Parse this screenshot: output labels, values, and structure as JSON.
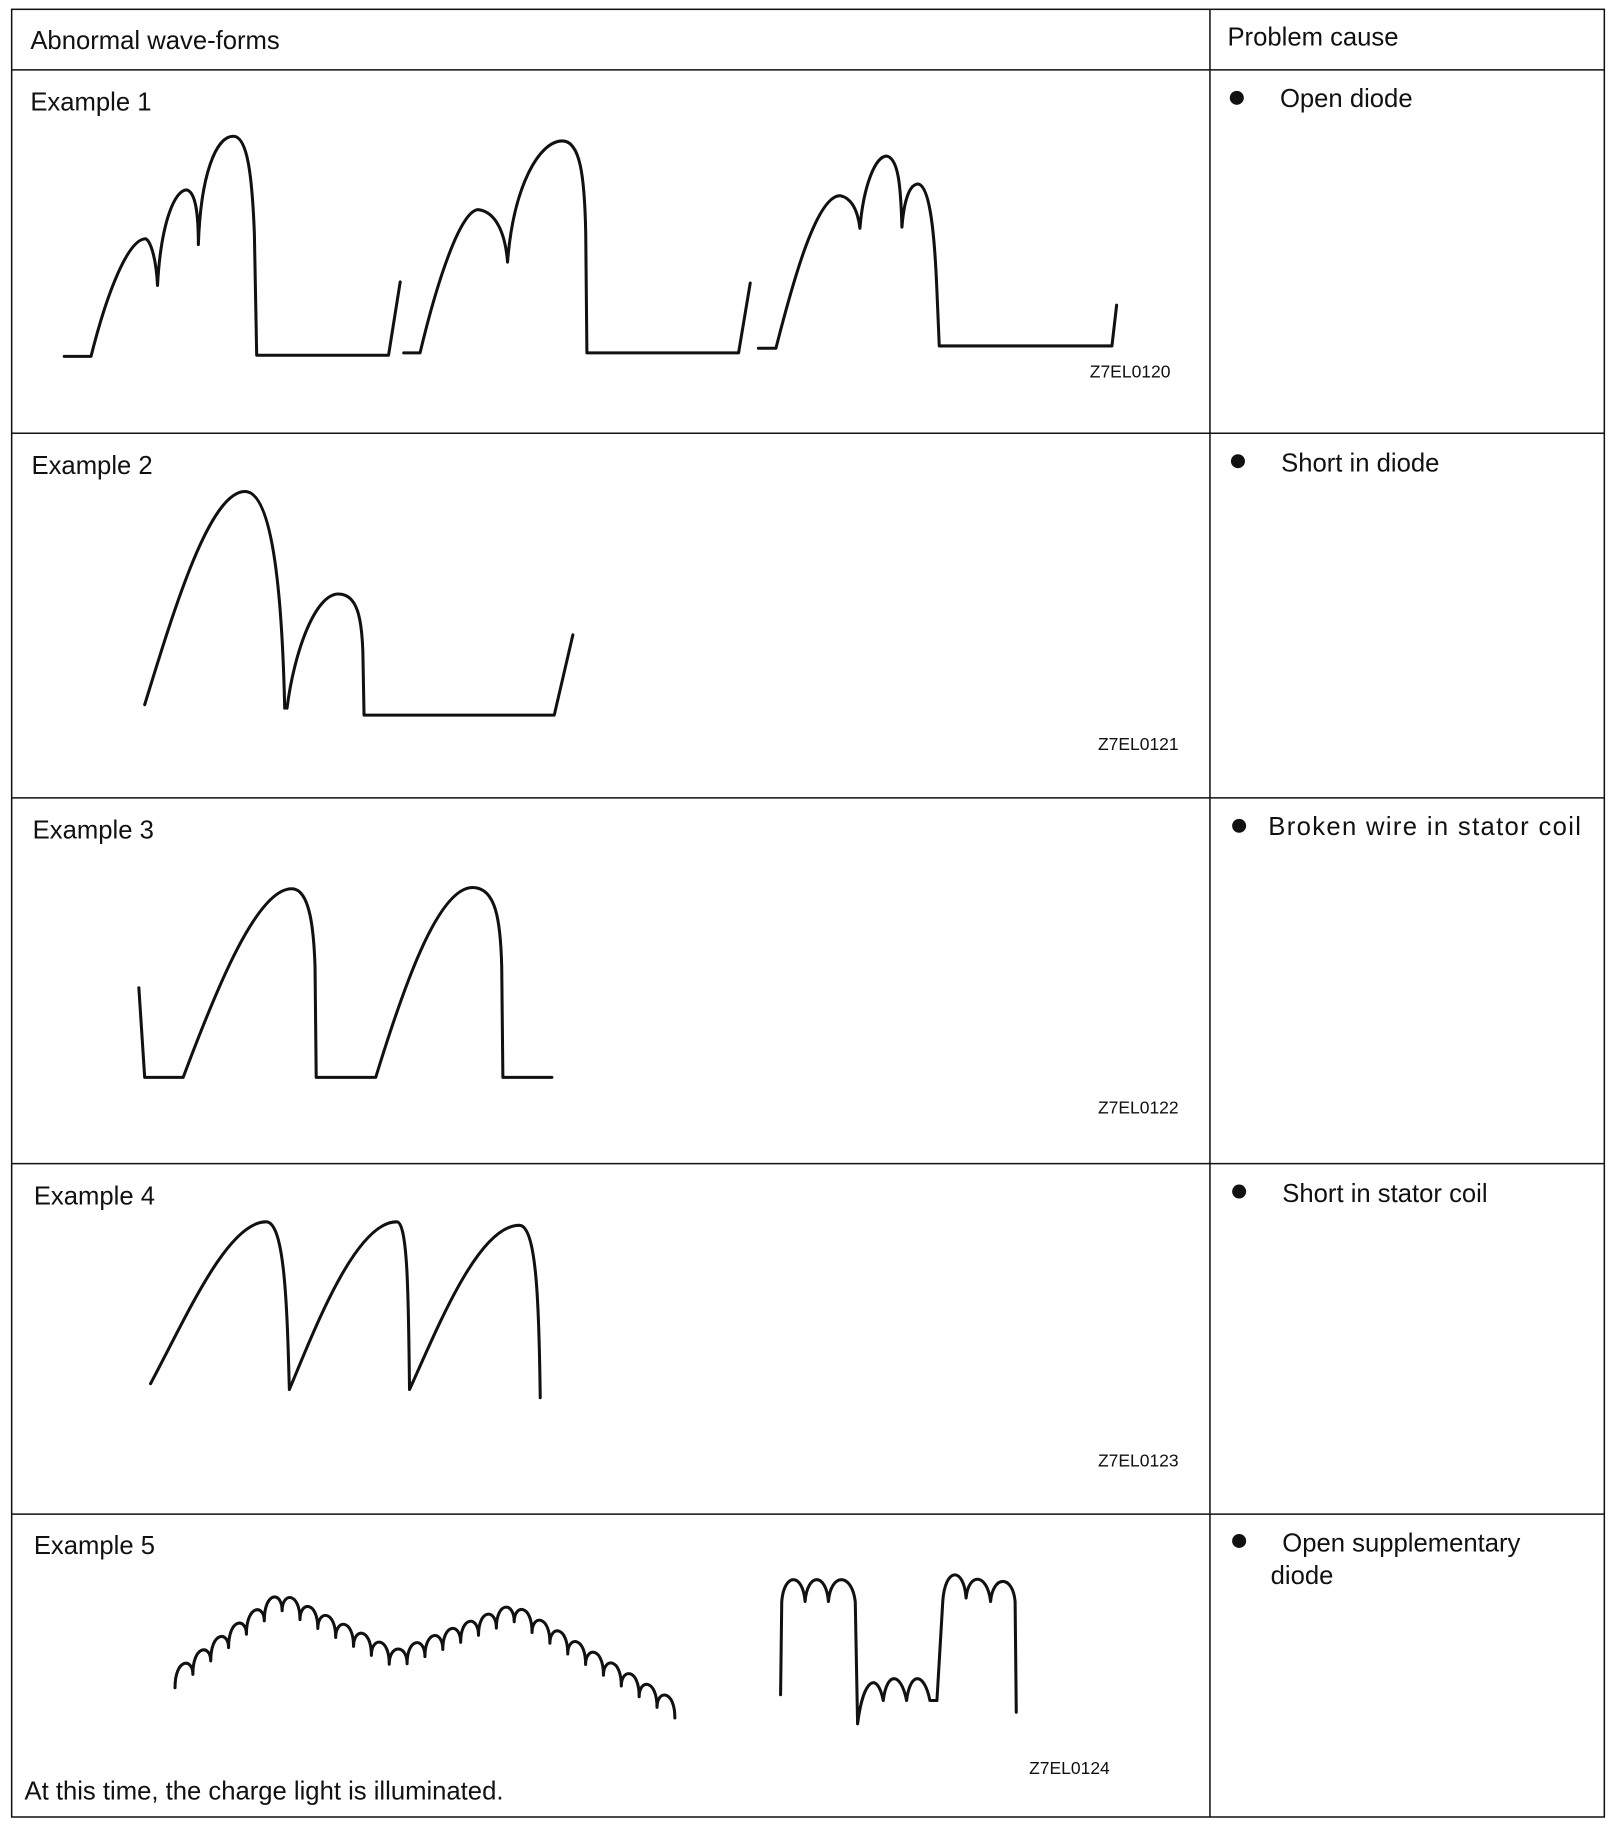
{
  "header": {
    "waveforms": "Abnormal wave-forms",
    "cause": "Problem cause"
  },
  "rows": [
    {
      "label": "Example 1",
      "code": "Z7EL0120",
      "cause": "Open diode",
      "cause2": ""
    },
    {
      "label": "Example 2",
      "code": "Z7EL0121",
      "cause": "Short in diode",
      "cause2": ""
    },
    {
      "label": "Example 3",
      "code": "Z7EL0122",
      "cause": "Broken wire in stator coil",
      "cause2": ""
    },
    {
      "label": "Example 4",
      "code": "Z7EL0123",
      "cause": "Short in stator coil",
      "cause2": ""
    },
    {
      "label": "Example 5",
      "code": "Z7EL0124",
      "cause": "Open supplementary",
      "cause2": "diode"
    }
  ],
  "note": "At this time, the charge light is illuminated."
}
